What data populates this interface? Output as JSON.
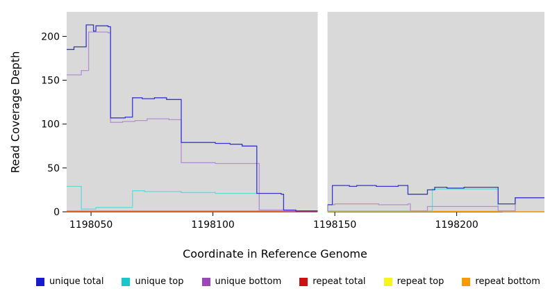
{
  "chart_data": {
    "type": "line",
    "subtype": "step-after-coverage",
    "title": "",
    "xlabel": "Coordinate in Reference Genome",
    "ylabel": "Read Coverage Depth",
    "xlim": [
      1198040,
      1198236
    ],
    "ylim": [
      0,
      228
    ],
    "x_ticks": [
      1198050,
      1198100,
      1198150,
      1198200
    ],
    "y_ticks": [
      0,
      50,
      100,
      150,
      200
    ],
    "plot_bg": "#d9d9d9",
    "grid": "off",
    "gap_region": [
      1198143,
      1198147
    ],
    "gap_color": "#ffffff",
    "legend_position": "bottom",
    "series": [
      {
        "name": "repeat top",
        "color": "#f5f51a",
        "points": [
          [
            1198040,
            0
          ],
          [
            1198236,
            0
          ]
        ]
      },
      {
        "name": "repeat total",
        "color": "#cd1111",
        "points": [
          [
            1198040,
            0
          ],
          [
            1198236,
            0
          ]
        ]
      },
      {
        "name": "repeat bottom",
        "color": "#f59b00",
        "points": [
          [
            1198040,
            1
          ],
          [
            1198143,
            1
          ],
          [
            1198147,
            0.5
          ],
          [
            1198218,
            0.5
          ],
          [
            1198219,
            0
          ],
          [
            1198236,
            0
          ]
        ]
      },
      {
        "name": "unique top",
        "color": "#66d9d9",
        "points": [
          [
            1198040,
            29
          ],
          [
            1198046,
            3
          ],
          [
            1198052,
            5
          ],
          [
            1198067,
            24
          ],
          [
            1198072,
            23
          ],
          [
            1198087,
            22
          ],
          [
            1198101,
            21
          ],
          [
            1198118,
            21
          ],
          [
            1198119,
            2
          ],
          [
            1198129,
            1
          ],
          [
            1198143,
            1
          ],
          [
            1198147,
            1
          ],
          [
            1198188,
            1
          ],
          [
            1198190,
            26
          ],
          [
            1198216,
            26
          ],
          [
            1198217,
            1
          ],
          [
            1198224,
            16
          ],
          [
            1198236,
            16
          ]
        ]
      },
      {
        "name": "unique bottom",
        "color": "#b58fd0",
        "points": [
          [
            1198040,
            156
          ],
          [
            1198046,
            161
          ],
          [
            1198049,
            205
          ],
          [
            1198057,
            204
          ],
          [
            1198058,
            102
          ],
          [
            1198063,
            103
          ],
          [
            1198068,
            104
          ],
          [
            1198073,
            106
          ],
          [
            1198082,
            105
          ],
          [
            1198087,
            56
          ],
          [
            1198101,
            55
          ],
          [
            1198118,
            55
          ],
          [
            1198119,
            2
          ],
          [
            1198129,
            1
          ],
          [
            1198143,
            0
          ],
          [
            1198147,
            8
          ],
          [
            1198150,
            9
          ],
          [
            1198168,
            8
          ],
          [
            1198180,
            9
          ],
          [
            1198181,
            1
          ],
          [
            1198188,
            6
          ],
          [
            1198216,
            6
          ],
          [
            1198217,
            1
          ],
          [
            1198224,
            16
          ],
          [
            1198236,
            16
          ]
        ]
      },
      {
        "name": "unique total",
        "color": "#3535d1",
        "points": [
          [
            1198040,
            185
          ],
          [
            1198043,
            188
          ],
          [
            1198048,
            213
          ],
          [
            1198051,
            206
          ],
          [
            1198052,
            212
          ],
          [
            1198057,
            211
          ],
          [
            1198058,
            107
          ],
          [
            1198064,
            108
          ],
          [
            1198067,
            130
          ],
          [
            1198071,
            129
          ],
          [
            1198076,
            130
          ],
          [
            1198081,
            128
          ],
          [
            1198087,
            79
          ],
          [
            1198101,
            78
          ],
          [
            1198107,
            77
          ],
          [
            1198112,
            75
          ],
          [
            1198118,
            21
          ],
          [
            1198128,
            20
          ],
          [
            1198129,
            2
          ],
          [
            1198134,
            1
          ],
          [
            1198143,
            1
          ],
          [
            1198147,
            8
          ],
          [
            1198149,
            30
          ],
          [
            1198156,
            29
          ],
          [
            1198159,
            30
          ],
          [
            1198167,
            29
          ],
          [
            1198176,
            30
          ],
          [
            1198180,
            20
          ],
          [
            1198188,
            25
          ],
          [
            1198191,
            28
          ],
          [
            1198196,
            27
          ],
          [
            1198203,
            28
          ],
          [
            1198216,
            28
          ],
          [
            1198217,
            9
          ],
          [
            1198224,
            16
          ],
          [
            1198236,
            16
          ]
        ]
      }
    ]
  },
  "legend": {
    "items": [
      {
        "label": "unique total",
        "color": "#1a1acd"
      },
      {
        "label": "unique top",
        "color": "#18c7c7"
      },
      {
        "label": "unique bottom",
        "color": "#9c47b8"
      },
      {
        "label": "repeat total",
        "color": "#cd1111"
      },
      {
        "label": "repeat top",
        "color": "#f5f51a"
      },
      {
        "label": "repeat bottom",
        "color": "#f59b00"
      }
    ]
  }
}
